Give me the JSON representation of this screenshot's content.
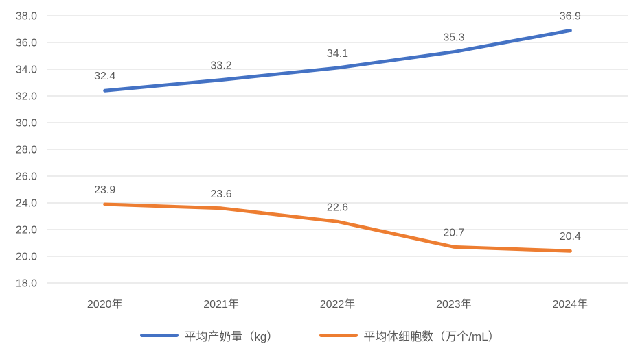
{
  "chart_data": {
    "type": "line",
    "categories": [
      "2020年",
      "2021年",
      "2022年",
      "2023年",
      "2024年"
    ],
    "series": [
      {
        "key": "milk-yield",
        "name": "平均产奶量（kg）",
        "values": [
          32.4,
          33.2,
          34.1,
          35.3,
          36.9
        ],
        "color": "#4472C4"
      },
      {
        "key": "somatic-cell-count",
        "name": "平均体细胞数（万个/mL）",
        "values": [
          23.9,
          23.6,
          22.6,
          20.7,
          20.4
        ],
        "color": "#ED7D31"
      }
    ],
    "title": "",
    "xlabel": "",
    "ylabel": "",
    "ylim": [
      18.0,
      38.0
    ],
    "ytick_step": 2.0,
    "ytick_format_decimals": 1,
    "grid": true,
    "data_labels": true,
    "legend_position": "bottom"
  },
  "colors": {
    "grid": "#D9D9D9",
    "text": "#595959",
    "background": "#FFFFFF"
  }
}
